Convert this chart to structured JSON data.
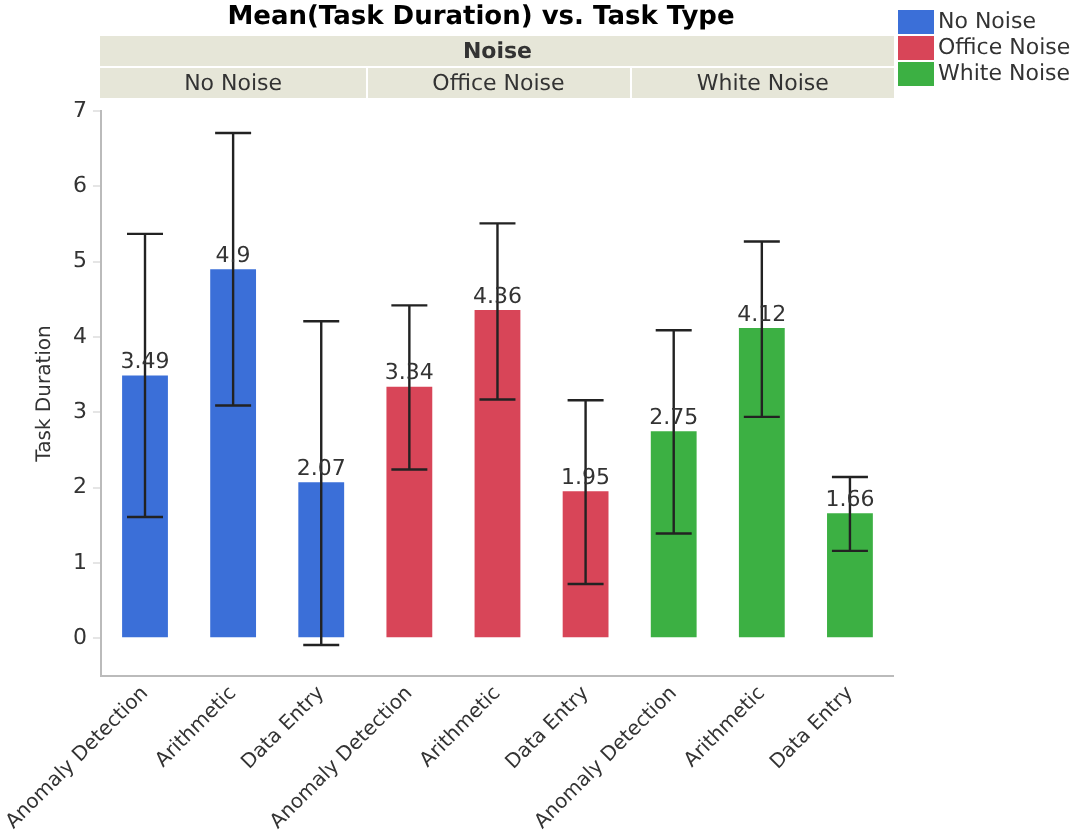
{
  "chart_data": {
    "type": "bar",
    "title": "Mean(Task Duration) vs. Task Type",
    "subtitle": "Noise",
    "ylabel": "Task Duration",
    "categories": [
      "Anomaly Detection",
      "Arithmetic",
      "Data Entry",
      "Anomaly Detection",
      "Arithmetic",
      "Data Entry",
      "Anomaly Detection",
      "Arithmetic",
      "Data Entry"
    ],
    "series": [
      {
        "name": "No Noise",
        "color": "#3b6fd8",
        "values": [
          3.49,
          4.9,
          2.07,
          null,
          null,
          null,
          null,
          null,
          null
        ],
        "errors": [
          [
            1.61,
            5.37
          ],
          [
            3.09,
            6.71
          ],
          [
            -0.09,
            4.21
          ],
          null,
          null,
          null,
          null,
          null,
          null
        ]
      },
      {
        "name": "Office Noise",
        "color": "#d84558",
        "values": [
          null,
          null,
          null,
          3.34,
          4.36,
          1.95,
          null,
          null,
          null
        ],
        "errors": [
          null,
          null,
          null,
          [
            2.24,
            4.42
          ],
          [
            3.17,
            5.51
          ],
          [
            0.72,
            3.16
          ],
          null,
          null,
          null
        ]
      },
      {
        "name": "White Noise",
        "color": "#3cb043",
        "values": [
          null,
          null,
          null,
          null,
          null,
          null,
          2.75,
          4.12,
          1.66
        ],
        "errors": [
          null,
          null,
          null,
          null,
          null,
          null,
          [
            1.39,
            4.09
          ],
          [
            2.94,
            5.27
          ],
          [
            1.16,
            2.14
          ]
        ]
      }
    ],
    "ylim": [
      -0.5,
      7
    ],
    "yticks": [
      0,
      1,
      2,
      3,
      4,
      5,
      6,
      7
    ],
    "data_labels": true,
    "legend": "right"
  }
}
